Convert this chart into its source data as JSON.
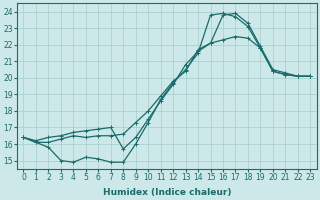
{
  "xlabel": "Humidex (Indice chaleur)",
  "xlim": [
    -0.5,
    23.5
  ],
  "ylim": [
    14.5,
    24.5
  ],
  "xticks": [
    0,
    1,
    2,
    3,
    4,
    5,
    6,
    7,
    8,
    9,
    10,
    11,
    12,
    13,
    14,
    15,
    16,
    17,
    18,
    19,
    20,
    21,
    22,
    23
  ],
  "yticks": [
    15,
    16,
    17,
    18,
    19,
    20,
    21,
    22,
    23,
    24
  ],
  "bg_color": "#cde8e8",
  "grid_color": "#a8cccc",
  "line_color": "#1a6b6b",
  "line1_x": [
    0,
    1,
    2,
    3,
    4,
    5,
    6,
    7,
    8,
    9,
    10,
    11,
    12,
    13,
    14,
    15,
    16,
    17,
    18,
    19,
    20,
    21,
    22,
    23
  ],
  "line1_y": [
    16.4,
    16.1,
    15.8,
    15.0,
    14.9,
    15.2,
    15.1,
    14.9,
    14.9,
    16.0,
    17.3,
    18.7,
    19.7,
    20.5,
    21.5,
    23.8,
    23.9,
    23.7,
    23.1,
    21.8,
    20.4,
    20.2,
    20.1,
    20.1
  ],
  "line2_x": [
    0,
    1,
    2,
    3,
    4,
    5,
    6,
    7,
    8,
    9,
    10,
    11,
    12,
    13,
    14,
    15,
    16,
    17,
    18,
    19,
    20,
    21,
    22,
    23
  ],
  "line2_y": [
    16.4,
    16.1,
    16.1,
    16.3,
    16.5,
    16.4,
    16.5,
    16.5,
    16.6,
    17.3,
    18.0,
    18.9,
    19.8,
    20.4,
    21.7,
    22.1,
    22.3,
    22.5,
    22.4,
    21.8,
    20.4,
    20.2,
    20.1,
    20.1
  ],
  "line3_x": [
    0,
    1,
    2,
    3,
    4,
    5,
    6,
    7,
    8,
    9,
    10,
    11,
    12,
    13,
    14,
    15,
    16,
    17,
    18,
    19,
    20,
    21,
    22,
    23
  ],
  "line3_y": [
    16.4,
    16.2,
    16.4,
    16.5,
    16.7,
    16.8,
    16.9,
    17.0,
    15.7,
    16.4,
    17.5,
    18.6,
    19.6,
    20.8,
    21.6,
    22.1,
    23.8,
    23.9,
    23.3,
    21.9,
    20.5,
    20.3,
    20.1,
    20.1
  ]
}
